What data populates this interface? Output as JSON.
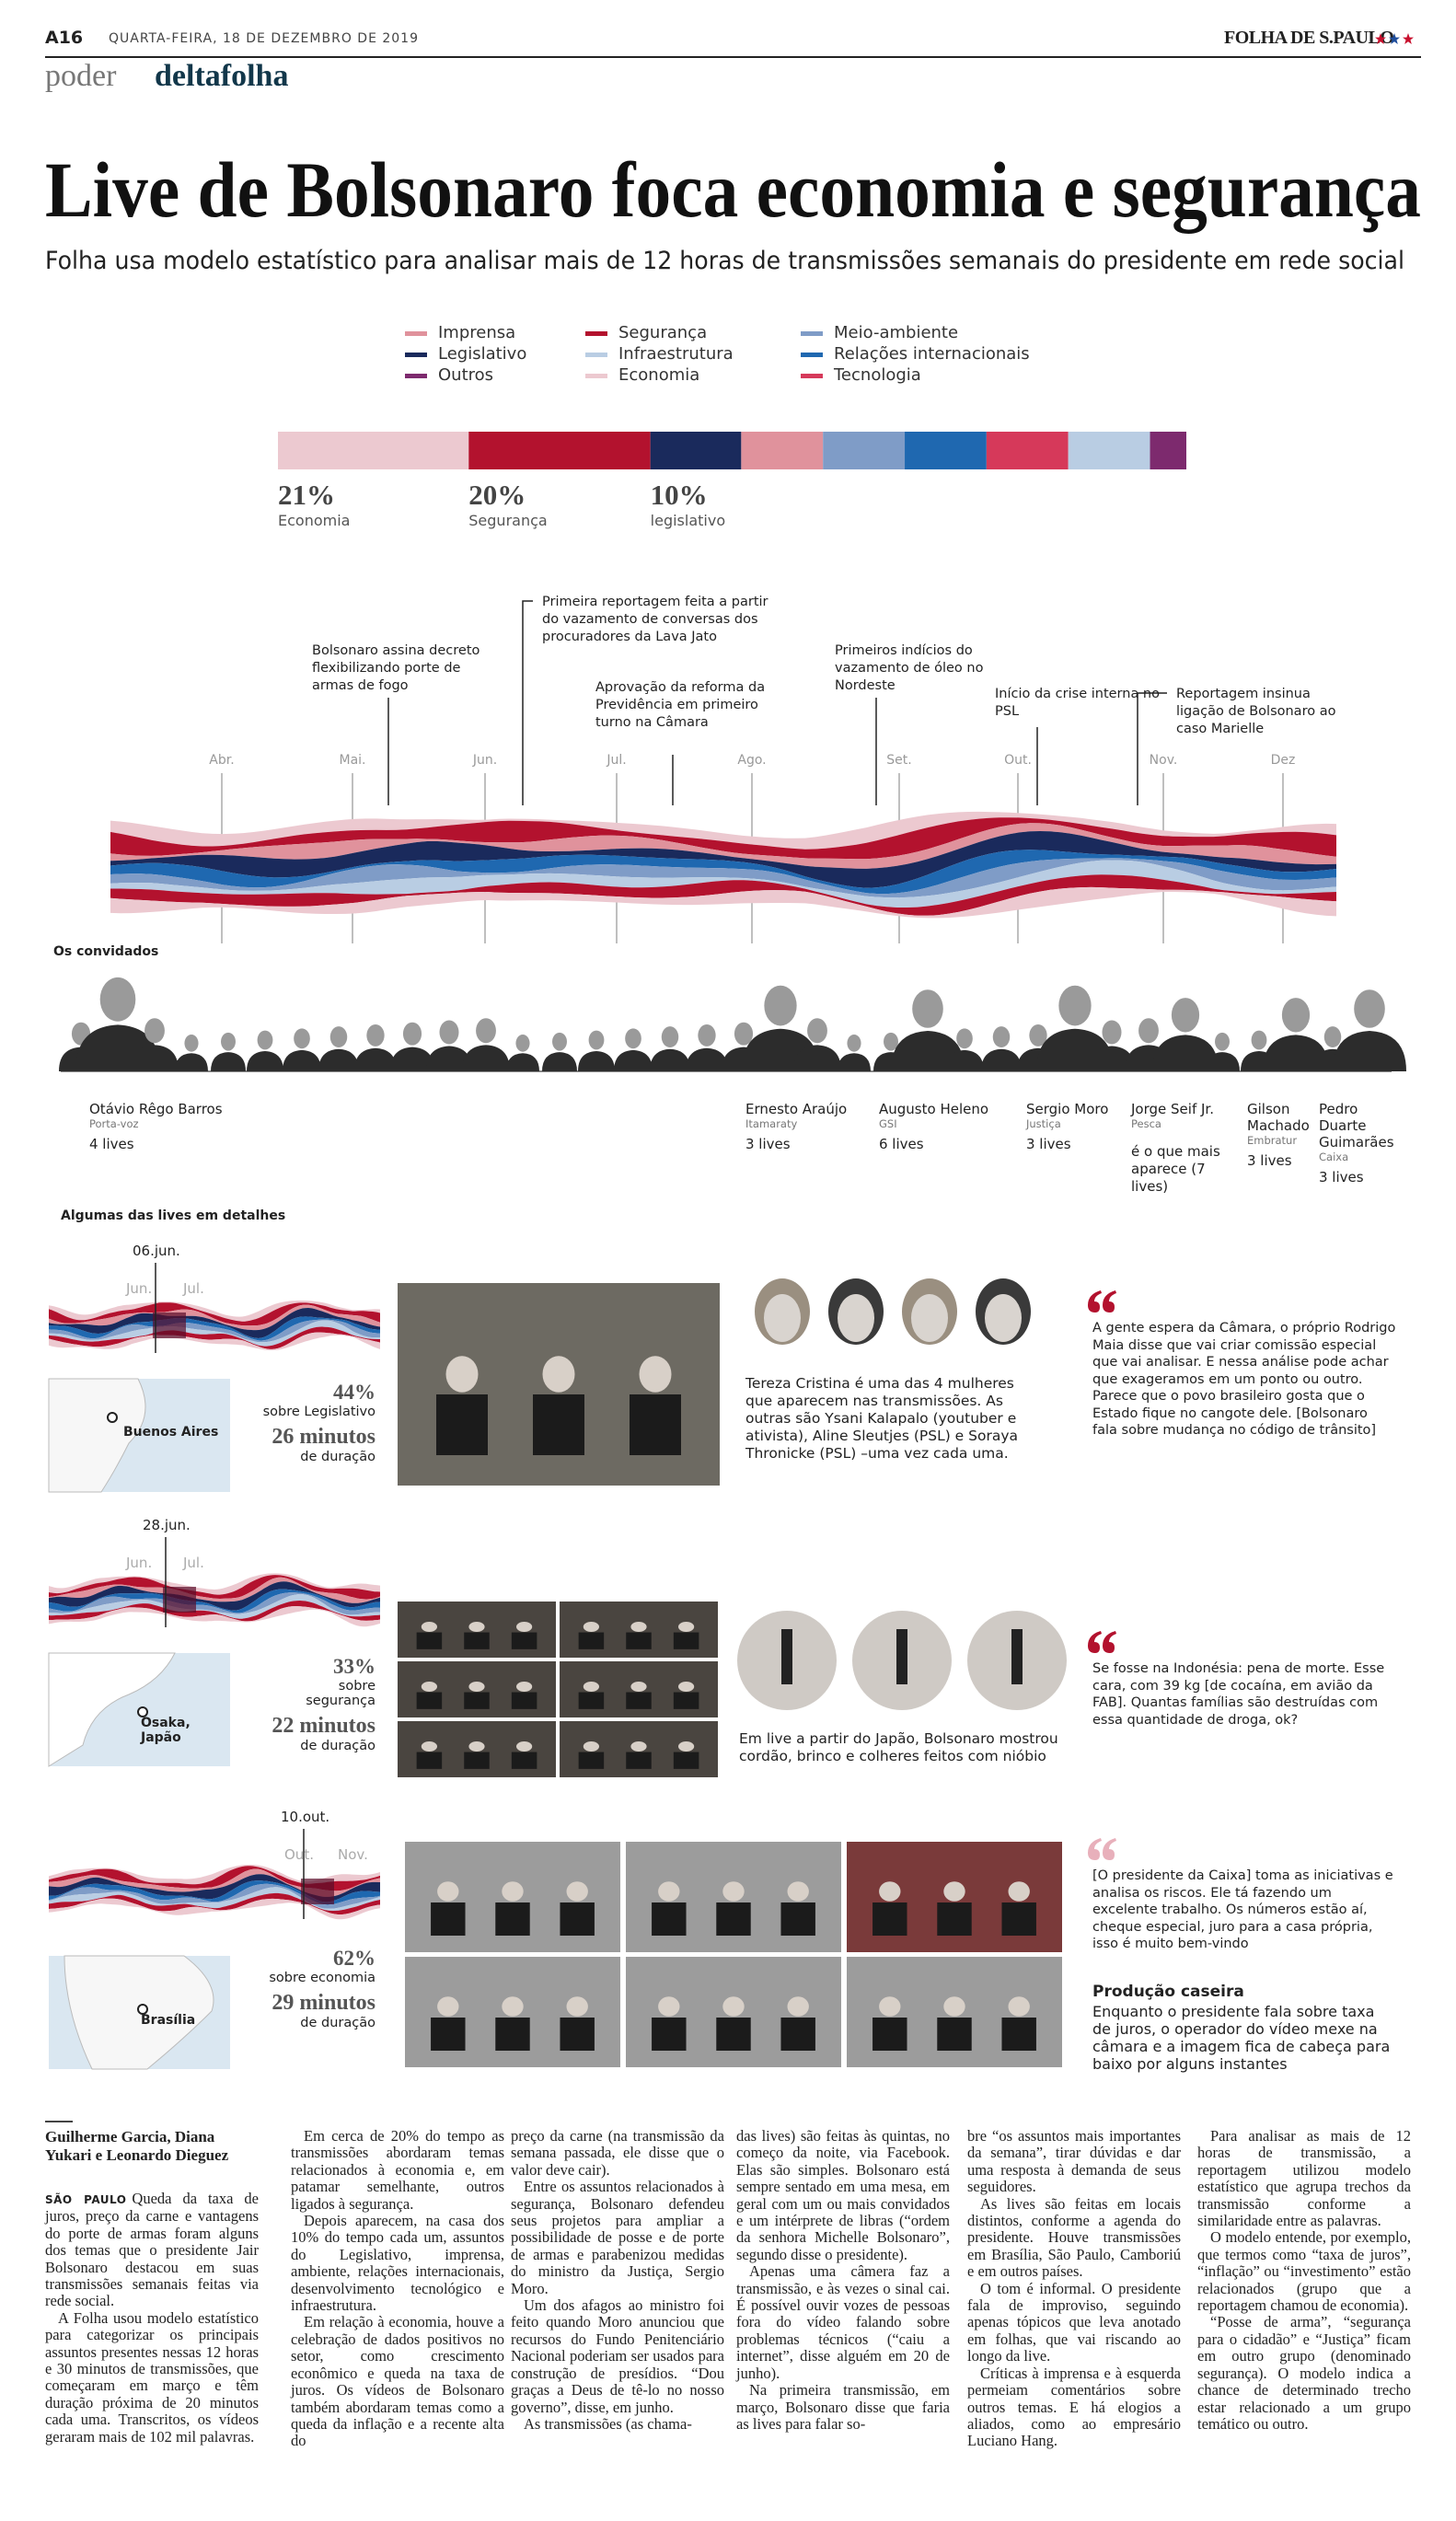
{
  "header": {
    "page": "A16",
    "date": "QUARTA-FEIRA, 18 DE DEZEMBRO DE 2019",
    "logo": "FOLHA DE S.PAULO",
    "section": "poder",
    "subsection": "deltafolha"
  },
  "headline": "Live de Bolsonaro foca economia e segurança",
  "subtitle": "Folha usa modelo estatístico para analisar mais de 12 horas de transmissões semanais do presidente em rede social",
  "chart_data": {
    "type": "stacked-share-bar",
    "series": [
      {
        "name": "Economia",
        "color": "#ecc9d0",
        "values": [
          21
        ],
        "value_labels": [
          "21%"
        ]
      },
      {
        "name": "Segurança",
        "color": "#b3122e",
        "values": [
          20
        ],
        "value_labels": [
          "20%"
        ]
      },
      {
        "name": "Legislativo",
        "color": "#1a2a5c",
        "values": [
          10
        ],
        "value_labels": [
          "10%"
        ]
      },
      {
        "name": "Imprensa",
        "color": "#e0929c",
        "values": [
          9
        ]
      },
      {
        "name": "Meio-ambiente",
        "color": "#7f9cc7",
        "values": [
          9
        ]
      },
      {
        "name": "Relações internacionais",
        "color": "#1f68b0",
        "values": [
          9
        ]
      },
      {
        "name": "Tecnologia",
        "color": "#d6395a",
        "values": [
          9
        ]
      },
      {
        "name": "Infraestrutura",
        "color": "#b9cde3",
        "values": [
          9
        ]
      },
      {
        "name": "Outros",
        "color": "#7d2a6e",
        "values": [
          4
        ]
      }
    ],
    "bar_captions": [
      "Economia",
      "Segurança",
      "legislativo"
    ]
  },
  "timeline": {
    "months": [
      "Abr.",
      "Mai.",
      "Jun.",
      "Jul.",
      "Ago.",
      "Set.",
      "Out.",
      "Nov.",
      "Dez"
    ],
    "events": [
      "Bolsonaro assina decreto flexibilizando porte de armas de fogo",
      "Primeira reportagem feita a partir do vazamento de conversas dos procuradores da Lava Jato",
      "Aprovação da reforma da Previdência em primeiro turno na Câmara",
      "Primeiros indícios do vazamento de óleo no Nordeste",
      "Início da crise interna no PSL",
      "Reportagem insinua ligação de Bolsonaro ao caso Marielle"
    ]
  },
  "guests": {
    "title": "Os convidados",
    "people": [
      {
        "name": "Otávio Rêgo Barros",
        "role": "Porta-voz",
        "lives": "4 lives"
      },
      {
        "name": "Ernesto Araújo",
        "role": "Itamaraty",
        "lives": "3 lives"
      },
      {
        "name": "Augusto Heleno",
        "role": "GSI",
        "lives": "6 lives"
      },
      {
        "name": "Sergio Moro",
        "role": "Justiça",
        "lives": "3 lives"
      },
      {
        "name": "Jorge Seif Jr.",
        "role": "Pesca",
        "lives": "é o que mais aparece (7 lives)"
      },
      {
        "name": "Gilson Machado",
        "role": "Embratur",
        "lives": "3 lives"
      },
      {
        "name": "Pedro Duarte Guimarães",
        "role": "Caixa",
        "lives": "3 lives"
      }
    ]
  },
  "details": {
    "title": "Algumas das lives em detalhes",
    "items": [
      {
        "date": "06.jun.",
        "months": [
          "Jun.",
          "Jul."
        ],
        "place": "Buenos Aires",
        "share": "44%",
        "topic": "sobre Legislativo",
        "duration": "26 minutos",
        "duration_note": "de duração",
        "caption": "Tereza Cristina é uma das 4 mulheres que aparecem nas transmissões. As outras são Ysani Kalapalo (youtuber e ativista), Aline Sleutjes (PSL) e Soraya Thronicke (PSL) –uma vez cada uma.",
        "quote": "A gente espera da Câmara, o próprio Rodrigo Maia disse que vai criar comissão especial que vai analisar. E nessa análise pode achar que exageramos em um ponto ou outro. Parece que o povo brasileiro gosta que o Estado fique no cangote dele. [Bolsonaro fala sobre mudança no código de trânsito]"
      },
      {
        "date": "28.jun.",
        "months": [
          "Jun.",
          "Jul."
        ],
        "place": "Osaka, Japão",
        "share": "33%",
        "topic": "sobre segurança",
        "duration": "22 minutos",
        "duration_note": "de duração",
        "caption": "Em live a partir do Japão, Bolsonaro mostrou cordão, brinco e colheres feitos com nióbio",
        "quote": "Se fosse na Indonésia: pena de morte. Esse cara, com 39 kg [de cocaína, em avião da FAB]. Quantas famílias são destruídas com essa quantidade de droga, ok?"
      },
      {
        "date": "10.out.",
        "months": [
          "Out.",
          "Nov."
        ],
        "place": "Brasília",
        "share": "62%",
        "topic": "sobre economia",
        "duration": "29 minutos",
        "duration_note": "de duração",
        "quote": "[O presidente da Caixa] toma as iniciativas e analisa os riscos. Ele tá fazendo um excelente trabalho. Os números estão aí, cheque especial, juro para a casa própria, isso é muito bem-vindo",
        "note_title": "Produção caseira",
        "note": "Enquanto o presidente fala sobre taxa de juros, o operador do vídeo mexe na câmara e a imagem fica de cabeça para baixo por alguns instantes"
      }
    ]
  },
  "body": {
    "byline": "Guilherme Garcia, Diana Yukari e Leonardo Dieguez",
    "dateline": "SÃO PAULO",
    "columns": [
      [
        "Queda da taxa de juros, preço da carne e vantagens do porte de armas foram alguns dos temas que o presidente Jair Bolsonaro destacou em suas transmissões semanais feitas via rede social.",
        "A Folha usou modelo estatístico para categorizar os principais assuntos presentes nessas 12 horas e 30 minutos de transmissões, que começaram em março e têm duração próxima de 20 minutos cada uma. Transcritos, os vídeos geraram mais de 102 mil palavras."
      ],
      [
        "Em cerca de 20% do tempo as transmissões abordaram temas relacionados à economia e, em patamar semelhante, outros ligados à segurança.",
        "Depois aparecem, na casa dos 10% do tempo cada um, assuntos do Legislativo, imprensa, ambiente, relações internacionais, desenvolvimento tecnológico e infraestrutura.",
        "Em relação à economia, houve a celebração de dados positivos no setor, como crescimento econômico e queda na taxa de juros. Os vídeos de Bolsonaro também abordaram temas como a queda da inflação e a recente alta do"
      ],
      [
        "preço da carne (na transmissão da semana passada, ele disse que o valor deve cair).",
        "Entre os assuntos relacionados à segurança, Bolsonaro defendeu seus projetos para ampliar a possibilidade de posse e de porte de armas e parabenizou medidas do ministro da Justiça, Sergio Moro.",
        "Um dos afagos ao ministro foi feito quando Moro anunciou que recursos do Fundo Penitenciário Nacional poderiam ser usados para construção de presídios. “Dou graças a Deus de tê-lo no nosso governo”, disse, em junho.",
        "As transmissões (as chama-"
      ],
      [
        "das lives) são feitas às quintas, no começo da noite, via Facebook. Elas são simples. Bolsonaro está sempre sentado em uma mesa, em geral com um ou mais convidados e um intérprete de libras (“ordem da senhora Michelle Bolsonaro”, segundo disse o presidente).",
        "Apenas uma câmera faz a transmissão, e às vezes o sinal cai. É possível ouvir vozes de pessoas fora do vídeo falando sobre problemas técnicos (“caiu a internet”, disse alguém em 20 de junho).",
        "Na primeira transmissão, em março, Bolsonaro disse que faria as lives para falar so-"
      ],
      [
        "bre “os assuntos mais importantes da semana”, tirar dúvidas e dar uma resposta à demanda de seus seguidores.",
        "As lives são feitas em locais distintos, conforme a agenda do presidente. Houve transmissões em Brasília, São Paulo, Camboriú e em outros países.",
        "O tom é informal. O presidente fala de improviso, seguindo apenas tópicos que leva anotado em folhas, que vai riscando ao longo da live.",
        "Críticas à imprensa e à esquerda permeiam comentários sobre outros temas. E há elogios a aliados, como ao empresário Luciano Hang."
      ],
      [
        "Para analisar as mais de 12 horas de transmissão, a reportagem utilizou modelo estatístico que agrupa trechos da transmissão conforme a similaridade entre as palavras.",
        "O modelo entende, por exemplo, que termos como “taxa de juros”, “inflação” ou “investimento” estão relacionados (grupo que a reportagem chamou de economia).",
        "“Posse de arma”, “segurança para o cidadão” e “Justiça” ficam em outro grupo (denominado segurança). O modelo indica a chance de determinado trecho estar relacionado a um grupo temático ou outro."
      ]
    ]
  }
}
